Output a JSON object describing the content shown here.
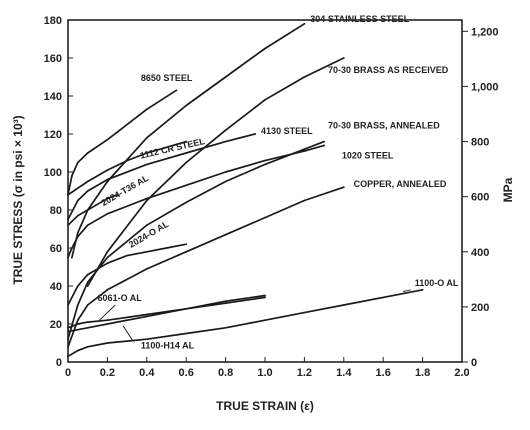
{
  "chart_data": {
    "type": "line",
    "xlabel": "TRUE STRAIN (ε)",
    "ylabel": "TRUE STRESS (σ in psi × 10³)",
    "y2label": "MPa",
    "xlim": [
      0,
      2.0
    ],
    "ylim": [
      0,
      180
    ],
    "y2lim": [
      0,
      1241
    ],
    "x_ticks": [
      "0",
      "0.2",
      "0.4",
      "0.6",
      "0.8",
      "1.0",
      "1.2",
      "1.4",
      "1.6",
      "1.8",
      "2.0"
    ],
    "y_ticks": [
      "0",
      "20",
      "40",
      "60",
      "80",
      "100",
      "120",
      "140",
      "160",
      "180"
    ],
    "y2_ticks": [
      "0",
      "200",
      "400",
      "600",
      "800",
      "1,000",
      "1,200"
    ],
    "grid": false,
    "series": [
      {
        "name": "304 STAINLESS STEEL",
        "x": [
          0.02,
          0.05,
          0.1,
          0.2,
          0.4,
          0.6,
          0.8,
          1.0,
          1.2
        ],
        "y": [
          55,
          68,
          80,
          95,
          118,
          135,
          150,
          165,
          178
        ]
      },
      {
        "name": "8650 STEEL",
        "x": [
          0.0,
          0.02,
          0.05,
          0.1,
          0.2,
          0.4,
          0.55
        ],
        "y": [
          88,
          98,
          105,
          110,
          117,
          133,
          143
        ]
      },
      {
        "name": "70-30 BRASS AS RECEIVED",
        "x": [
          0.1,
          0.2,
          0.4,
          0.6,
          0.8,
          1.0,
          1.2,
          1.4
        ],
        "y": [
          40,
          58,
          85,
          105,
          122,
          138,
          150,
          160
        ]
      },
      {
        "name": "1112 CR STEEL",
        "x": [
          0.0,
          0.1,
          0.2,
          0.3,
          0.4,
          0.5,
          0.6
        ],
        "y": [
          88,
          95,
          101,
          106,
          110,
          113,
          116
        ]
      },
      {
        "name": "4130 STEEL",
        "x": [
          0.0,
          0.05,
          0.1,
          0.2,
          0.4,
          0.6,
          0.8,
          0.95
        ],
        "y": [
          75,
          85,
          90,
          96,
          104,
          110,
          116,
          120
        ]
      },
      {
        "name": "70-30 BRASS, ANNEALED",
        "x": [
          0.0,
          0.05,
          0.1,
          0.2,
          0.4,
          0.6,
          0.8,
          1.0,
          1.2,
          1.3
        ],
        "y": [
          12,
          30,
          42,
          55,
          72,
          84,
          95,
          104,
          112,
          116
        ]
      },
      {
        "name": "1020 STEEL",
        "x": [
          0.0,
          0.02,
          0.05,
          0.1,
          0.2,
          0.4,
          0.6,
          0.8,
          1.0,
          1.2,
          1.3
        ],
        "y": [
          55,
          60,
          66,
          72,
          78,
          86,
          93,
          100,
          106,
          111,
          114
        ]
      },
      {
        "name": "2024-T36 AL",
        "x": [
          0.0,
          0.05,
          0.1,
          0.15,
          0.2,
          0.25
        ],
        "y": [
          72,
          77,
          80,
          83,
          86,
          88
        ]
      },
      {
        "name": "COPPER, ANNEALED",
        "x": [
          0.0,
          0.05,
          0.1,
          0.2,
          0.4,
          0.6,
          0.8,
          1.0,
          1.2,
          1.4
        ],
        "y": [
          8,
          22,
          30,
          38,
          49,
          58,
          67,
          76,
          85,
          92
        ]
      },
      {
        "name": "2024-O AL",
        "x": [
          0.0,
          0.05,
          0.1,
          0.2,
          0.3,
          0.4,
          0.5,
          0.6
        ],
        "y": [
          30,
          40,
          46,
          52,
          56,
          58,
          60,
          62
        ]
      },
      {
        "name": "6061-O AL",
        "x": [
          0.0,
          0.05,
          0.1,
          0.2,
          0.4,
          0.6,
          0.8,
          1.0
        ],
        "y": [
          18,
          20,
          21,
          22,
          25,
          28,
          31,
          34
        ]
      },
      {
        "name": "1100-H14 AL",
        "x": [
          0.0,
          0.1,
          0.2,
          0.4,
          0.6,
          0.8,
          1.0
        ],
        "y": [
          16,
          18,
          20,
          24,
          28,
          32,
          35
        ]
      },
      {
        "name": "1100-O AL",
        "x": [
          0.0,
          0.05,
          0.1,
          0.2,
          0.4,
          0.6,
          0.8,
          1.0,
          1.2,
          1.4,
          1.6,
          1.8
        ],
        "y": [
          3,
          6,
          8,
          10,
          12,
          15,
          18,
          22,
          26,
          30,
          34,
          38
        ]
      }
    ]
  }
}
